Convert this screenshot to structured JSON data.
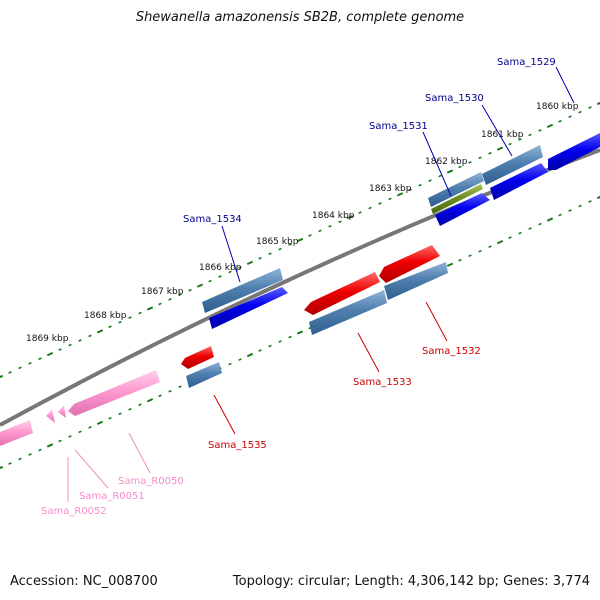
{
  "title": "Shewanella amazonensis SB2B, complete genome",
  "footer": {
    "accession": "Accession: NC_008700",
    "summary": "Topology: circular; Length: 4,306,142 bp; Genes: 3,774"
  },
  "colors": {
    "backbone": "#777777",
    "tick": "#1a7a1a",
    "cds_forward": "#0000ee",
    "gene_steel": "#4f7fae",
    "cds_reverse": "#ee0000",
    "gene_olive": "#6b8e23",
    "rna": "#ff8fc8",
    "label_blue": "#00008b",
    "label_red": "#cc0000",
    "label_pink": "#f58cc8"
  },
  "tick_labels": [
    "1860 kbp",
    "1861 kbp",
    "1862 kbp",
    "1863 kbp",
    "1864 kbp",
    "1865 kbp",
    "1866 kbp",
    "1867 kbp",
    "1868 kbp",
    "1869 kbp"
  ],
  "gene_labels": [
    "Sama_1529",
    "Sama_1530",
    "Sama_1531",
    "Sama_1534",
    "Sama_1532",
    "Sama_1533",
    "Sama_1535",
    "Sama_R0050",
    "Sama_R0051",
    "Sama_R0052"
  ]
}
